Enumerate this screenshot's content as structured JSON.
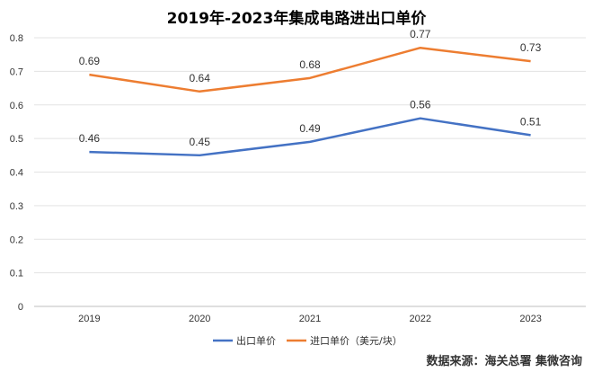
{
  "chart_data": {
    "type": "line",
    "title": "2019年-2023年集成电路进出口单价",
    "categories": [
      "2019",
      "2020",
      "2021",
      "2022",
      "2023"
    ],
    "series": [
      {
        "name": "出口单价",
        "values": [
          0.46,
          0.45,
          0.49,
          0.56,
          0.51
        ],
        "color": "#4472C4"
      },
      {
        "name": "进口单价（美元/块）",
        "values": [
          0.69,
          0.64,
          0.68,
          0.77,
          0.73
        ],
        "color": "#ED7D31"
      }
    ],
    "ylim": [
      0,
      0.8
    ],
    "yticks": [
      "0",
      "0.1",
      "0.2",
      "0.3",
      "0.4",
      "0.5",
      "0.6",
      "0.7",
      "0.8"
    ],
    "grid": true,
    "legend_position": "bottom",
    "source": "数据来源：海关总署 集微咨询"
  }
}
